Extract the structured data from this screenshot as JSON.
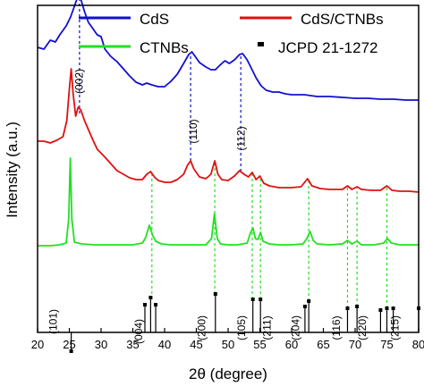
{
  "chart_data": {
    "type": "line",
    "title": "",
    "xlabel": "2θ (degree)",
    "ylabel": "Intensity (a.u.)",
    "xlim": [
      20,
      80
    ],
    "x_ticks": [
      20,
      25,
      30,
      35,
      40,
      45,
      50,
      55,
      60,
      65,
      70,
      75,
      80
    ],
    "y_ticks_shown": false,
    "grid": false,
    "legend_position": "top",
    "series": [
      {
        "name": "CdS",
        "color": "#1010d0",
        "points": [
          [
            20,
            2.52
          ],
          [
            21,
            2.5
          ],
          [
            22,
            2.6
          ],
          [
            22.8,
            2.58
          ],
          [
            23.5,
            2.66
          ],
          [
            24.5,
            2.76
          ],
          [
            25.2,
            2.86
          ],
          [
            25.8,
            2.98
          ],
          [
            26.4,
            3.1
          ],
          [
            26.8,
            3.06
          ],
          [
            27.4,
            2.92
          ],
          [
            28,
            2.8
          ],
          [
            28.6,
            2.74
          ],
          [
            29.4,
            2.66
          ],
          [
            30,
            2.64
          ],
          [
            30.6,
            2.5
          ],
          [
            31.5,
            2.42
          ],
          [
            32.5,
            2.36
          ],
          [
            33.5,
            2.28
          ],
          [
            34.5,
            2.2
          ],
          [
            35.5,
            2.13
          ],
          [
            36.5,
            2.1
          ],
          [
            37.2,
            2.12
          ],
          [
            38,
            2.1
          ],
          [
            39,
            2.08
          ],
          [
            40,
            2.08
          ],
          [
            41,
            2.14
          ],
          [
            42,
            2.22
          ],
          [
            43,
            2.34
          ],
          [
            43.8,
            2.44
          ],
          [
            44.3,
            2.47
          ],
          [
            44.8,
            2.42
          ],
          [
            45.5,
            2.35
          ],
          [
            46.5,
            2.3
          ],
          [
            47.3,
            2.27
          ],
          [
            48,
            2.27
          ],
          [
            48.7,
            2.32
          ],
          [
            49.5,
            2.37
          ],
          [
            50.2,
            2.34
          ],
          [
            51,
            2.38
          ],
          [
            51.8,
            2.44
          ],
          [
            52.3,
            2.45
          ],
          [
            53,
            2.38
          ],
          [
            53.7,
            2.28
          ],
          [
            54.4,
            2.18
          ],
          [
            55.2,
            2.09
          ],
          [
            56,
            2.04
          ],
          [
            57,
            2.02
          ],
          [
            58,
            2.02
          ],
          [
            59,
            2.0
          ],
          [
            60,
            1.99
          ],
          [
            62,
            1.99
          ],
          [
            64,
            1.97
          ],
          [
            66,
            1.97
          ],
          [
            68,
            1.96
          ],
          [
            70,
            1.95
          ],
          [
            72,
            1.95
          ],
          [
            74,
            1.94
          ],
          [
            76,
            1.94
          ],
          [
            78,
            1.93
          ],
          [
            80,
            1.93
          ]
        ]
      },
      {
        "name": "CdS/CTNBs",
        "color": "#e01010",
        "points": [
          [
            20,
            1.47
          ],
          [
            21,
            1.47
          ],
          [
            22,
            1.45
          ],
          [
            23,
            1.48
          ],
          [
            24,
            1.52
          ],
          [
            24.6,
            1.7
          ],
          [
            25,
            2.05
          ],
          [
            25.3,
            2.28
          ],
          [
            25.6,
            2.0
          ],
          [
            26,
            1.75
          ],
          [
            26.4,
            1.85
          ],
          [
            26.8,
            1.82
          ],
          [
            27.4,
            1.7
          ],
          [
            28,
            1.6
          ],
          [
            28.6,
            1.5
          ],
          [
            29.4,
            1.38
          ],
          [
            30.5,
            1.3
          ],
          [
            31.5,
            1.22
          ],
          [
            32.5,
            1.14
          ],
          [
            33.5,
            1.1
          ],
          [
            34.5,
            1.06
          ],
          [
            35.5,
            1.04
          ],
          [
            36.5,
            1.04
          ],
          [
            37.2,
            1.1
          ],
          [
            37.8,
            1.13
          ],
          [
            38.4,
            1.07
          ],
          [
            39,
            1.03
          ],
          [
            40,
            1.01
          ],
          [
            41,
            1.01
          ],
          [
            42,
            1.04
          ],
          [
            43,
            1.1
          ],
          [
            43.6,
            1.2
          ],
          [
            44.1,
            1.25
          ],
          [
            44.6,
            1.16
          ],
          [
            45.5,
            1.07
          ],
          [
            46.5,
            1.05
          ],
          [
            47.3,
            1.1
          ],
          [
            47.9,
            1.25
          ],
          [
            48.4,
            1.1
          ],
          [
            49,
            1.04
          ],
          [
            50,
            1.03
          ],
          [
            51,
            1.08
          ],
          [
            51.8,
            1.14
          ],
          [
            52.5,
            1.1
          ],
          [
            53.2,
            1.07
          ],
          [
            53.8,
            1.12
          ],
          [
            54.4,
            1.04
          ],
          [
            55,
            1.08
          ],
          [
            55.6,
            1.0
          ],
          [
            56.5,
            0.97
          ],
          [
            58,
            0.95
          ],
          [
            60,
            0.95
          ],
          [
            61.5,
            0.96
          ],
          [
            62.5,
            1.05
          ],
          [
            63.2,
            0.97
          ],
          [
            64.5,
            0.94
          ],
          [
            66,
            0.93
          ],
          [
            68,
            0.93
          ],
          [
            68.8,
            0.97
          ],
          [
            69.5,
            0.93
          ],
          [
            70.3,
            0.96
          ],
          [
            71,
            0.93
          ],
          [
            72.5,
            0.92
          ],
          [
            74,
            0.92
          ],
          [
            75,
            0.97
          ],
          [
            75.8,
            0.92
          ],
          [
            77,
            0.91
          ],
          [
            78.5,
            0.91
          ],
          [
            80,
            0.9
          ]
        ]
      },
      {
        "name": "CTNBs",
        "color": "#22e022",
        "points": [
          [
            20,
            0.3
          ],
          [
            22,
            0.3
          ],
          [
            23.5,
            0.31
          ],
          [
            24.5,
            0.33
          ],
          [
            24.9,
            0.6
          ],
          [
            25.15,
            1.28
          ],
          [
            25.4,
            0.6
          ],
          [
            25.8,
            0.34
          ],
          [
            27,
            0.32
          ],
          [
            29,
            0.31
          ],
          [
            31,
            0.31
          ],
          [
            33,
            0.31
          ],
          [
            35,
            0.31
          ],
          [
            36.5,
            0.33
          ],
          [
            37,
            0.39
          ],
          [
            37.6,
            0.53
          ],
          [
            38.1,
            0.42
          ],
          [
            38.6,
            0.35
          ],
          [
            39.5,
            0.32
          ],
          [
            41,
            0.31
          ],
          [
            43,
            0.31
          ],
          [
            45,
            0.31
          ],
          [
            46.5,
            0.31
          ],
          [
            47.4,
            0.38
          ],
          [
            47.85,
            0.66
          ],
          [
            48.3,
            0.38
          ],
          [
            48.8,
            0.32
          ],
          [
            50,
            0.31
          ],
          [
            51.5,
            0.31
          ],
          [
            53,
            0.33
          ],
          [
            53.5,
            0.44
          ],
          [
            53.9,
            0.5
          ],
          [
            54.3,
            0.38
          ],
          [
            54.7,
            0.37
          ],
          [
            55.1,
            0.45
          ],
          [
            55.5,
            0.35
          ],
          [
            56.5,
            0.32
          ],
          [
            58,
            0.31
          ],
          [
            60,
            0.31
          ],
          [
            61.8,
            0.32
          ],
          [
            62.4,
            0.38
          ],
          [
            62.9,
            0.46
          ],
          [
            63.4,
            0.36
          ],
          [
            64,
            0.32
          ],
          [
            66,
            0.31
          ],
          [
            68,
            0.32
          ],
          [
            68.8,
            0.36
          ],
          [
            69.5,
            0.32
          ],
          [
            70.3,
            0.35
          ],
          [
            71,
            0.31
          ],
          [
            73,
            0.31
          ],
          [
            74.5,
            0.33
          ],
          [
            75.1,
            0.38
          ],
          [
            75.7,
            0.33
          ],
          [
            77,
            0.31
          ],
          [
            78.5,
            0.31
          ],
          [
            80,
            0.31
          ]
        ]
      }
    ],
    "reference": {
      "name": "JCPD 21-1272",
      "color": "#000000",
      "lines": [
        [
          25.3,
          -0.88
        ],
        [
          36.9,
          -0.36
        ],
        [
          37.8,
          -0.28
        ],
        [
          38.6,
          -0.36
        ],
        [
          48.0,
          -0.24
        ],
        [
          53.9,
          -0.3
        ],
        [
          55.1,
          -0.3
        ],
        [
          62.1,
          -0.38
        ],
        [
          62.7,
          -0.32
        ],
        [
          68.8,
          -0.4
        ],
        [
          70.3,
          -0.38
        ],
        [
          74.0,
          -0.42
        ],
        [
          75.0,
          -0.4
        ],
        [
          76.0,
          -0.4
        ],
        [
          80.0,
          -0.4
        ]
      ]
    },
    "miller_labels": [
      {
        "text": "(002)",
        "x": 27.1,
        "y": 2.14
      },
      {
        "text": "(110)",
        "x": 45.1,
        "y": 1.58
      },
      {
        "text": "(112)",
        "x": 52.6,
        "y": 1.5
      },
      {
        "text": "(101)",
        "x": 23.0,
        "y": -0.55
      },
      {
        "text": "(004)",
        "x": 36.5,
        "y": -0.66
      },
      {
        "text": "(200)",
        "x": 46.4,
        "y": -0.62
      },
      {
        "text": "(105)",
        "x": 52.7,
        "y": -0.62
      },
      {
        "text": "(211)",
        "x": 56.7,
        "y": -0.62
      },
      {
        "text": "(204)",
        "x": 61.2,
        "y": -0.62
      },
      {
        "text": "(116)",
        "x": 67.6,
        "y": -0.62
      },
      {
        "text": "(220)",
        "x": 71.7,
        "y": -0.62
      },
      {
        "text": "(215)",
        "x": 76.8,
        "y": -0.62
      }
    ],
    "dashed_lines": [
      {
        "color": "#1010d0",
        "x": 26.6,
        "y1": 1.78,
        "y2": 3.08
      },
      {
        "color": "#1010d0",
        "x": 44.1,
        "y1": 1.25,
        "y2": 2.46
      },
      {
        "color": "#1010d0",
        "x": 52.0,
        "y1": 1.13,
        "y2": 2.44
      },
      {
        "color": "#22e022",
        "x": 38.0,
        "y1": -0.3,
        "y2": 1.12
      },
      {
        "color": "#22e022",
        "x": 47.9,
        "y1": -0.24,
        "y2": 1.24
      },
      {
        "color": "#22e022",
        "x": 53.8,
        "y1": -0.3,
        "y2": 1.12
      },
      {
        "color": "#22e022",
        "x": 55.1,
        "y1": -0.3,
        "y2": 1.07
      },
      {
        "color": "#22e022",
        "x": 62.7,
        "y1": -0.32,
        "y2": 1.04
      },
      {
        "color": "#22e022",
        "x": 68.8,
        "y1": -0.4,
        "y2": 0.97
      },
      {
        "color": "#22e022",
        "x": 70.3,
        "y1": -0.38,
        "y2": 0.96
      },
      {
        "color": "#22e022",
        "x": 75.0,
        "y1": -0.4,
        "y2": 0.97
      }
    ]
  }
}
